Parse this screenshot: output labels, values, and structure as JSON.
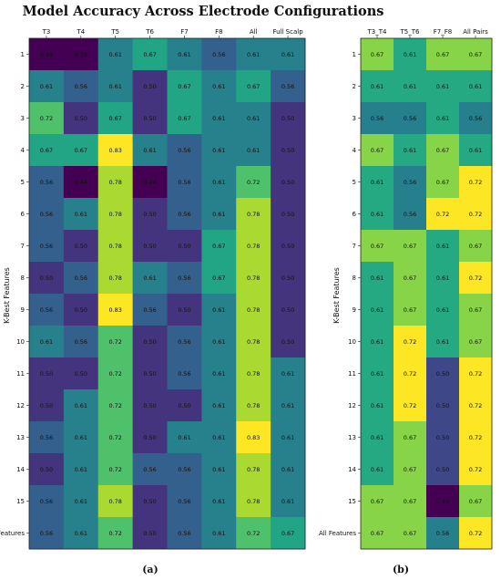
{
  "chart_data": [
    {
      "type": "heatmap",
      "title": "Model Accuracy Across Electrode Configurations",
      "panel_label": "(a)",
      "ylabel": "K-Best Features",
      "columns": [
        "T3",
        "T4",
        "T5",
        "T6",
        "F7",
        "F8",
        "All",
        "Full Scalp"
      ],
      "rows": [
        "1",
        "2",
        "3",
        "4",
        "5",
        "6",
        "7",
        "8",
        "9",
        "10",
        "11",
        "12",
        "13",
        "14",
        "15",
        "All Features"
      ],
      "colormap": "viridis",
      "color_range": [
        0.44,
        0.83
      ],
      "values": [
        [
          0.44,
          0.39,
          0.61,
          0.67,
          0.61,
          0.56,
          0.61,
          0.61
        ],
        [
          0.61,
          0.56,
          0.61,
          0.5,
          0.67,
          0.61,
          0.67,
          0.56
        ],
        [
          0.72,
          0.5,
          0.67,
          0.5,
          0.67,
          0.61,
          0.61,
          0.5
        ],
        [
          0.67,
          0.67,
          0.83,
          0.61,
          0.56,
          0.61,
          0.61,
          0.5
        ],
        [
          0.56,
          0.44,
          0.78,
          0.44,
          0.56,
          0.61,
          0.72,
          0.5
        ],
        [
          0.56,
          0.61,
          0.78,
          0.5,
          0.56,
          0.61,
          0.78,
          0.5
        ],
        [
          0.56,
          0.5,
          0.78,
          0.5,
          0.5,
          0.67,
          0.78,
          0.5
        ],
        [
          0.5,
          0.56,
          0.78,
          0.61,
          0.56,
          0.67,
          0.78,
          0.5
        ],
        [
          0.56,
          0.5,
          0.83,
          0.56,
          0.5,
          0.61,
          0.78,
          0.5
        ],
        [
          0.61,
          0.56,
          0.72,
          0.5,
          0.56,
          0.61,
          0.78,
          0.5
        ],
        [
          0.5,
          0.5,
          0.72,
          0.5,
          0.56,
          0.61,
          0.78,
          0.61
        ],
        [
          0.5,
          0.61,
          0.72,
          0.5,
          0.5,
          0.61,
          0.78,
          0.61
        ],
        [
          0.56,
          0.61,
          0.72,
          0.5,
          0.61,
          0.61,
          0.83,
          0.61
        ],
        [
          0.5,
          0.61,
          0.72,
          0.56,
          0.56,
          0.61,
          0.78,
          0.61
        ],
        [
          0.56,
          0.61,
          0.78,
          0.5,
          0.56,
          0.61,
          0.78,
          0.61
        ],
        [
          0.56,
          0.61,
          0.72,
          0.5,
          0.56,
          0.61,
          0.72,
          0.67
        ]
      ]
    },
    {
      "type": "heatmap",
      "panel_label": "(b)",
      "ylabel": "K-Best Features",
      "columns": [
        "T3_T4",
        "T5_T6",
        "F7_F8",
        "All Pairs"
      ],
      "rows": [
        "1",
        "2",
        "3",
        "4",
        "5",
        "6",
        "7",
        "8",
        "9",
        "10",
        "11",
        "12",
        "13",
        "14",
        "15",
        "All Features"
      ],
      "colormap": "viridis",
      "color_range": [
        0.44,
        0.72
      ],
      "values": [
        [
          0.67,
          0.61,
          0.67,
          0.67
        ],
        [
          0.61,
          0.61,
          0.61,
          0.61
        ],
        [
          0.56,
          0.56,
          0.61,
          0.56
        ],
        [
          0.67,
          0.61,
          0.67,
          0.61
        ],
        [
          0.61,
          0.56,
          0.67,
          0.72
        ],
        [
          0.61,
          0.56,
          0.72,
          0.72
        ],
        [
          0.67,
          0.67,
          0.61,
          0.67
        ],
        [
          0.61,
          0.67,
          0.61,
          0.72
        ],
        [
          0.61,
          0.67,
          0.61,
          0.67
        ],
        [
          0.61,
          0.72,
          0.61,
          0.67
        ],
        [
          0.61,
          0.72,
          0.5,
          0.72
        ],
        [
          0.61,
          0.72,
          0.5,
          0.72
        ],
        [
          0.61,
          0.67,
          0.5,
          0.72
        ],
        [
          0.61,
          0.67,
          0.5,
          0.72
        ],
        [
          0.67,
          0.67,
          0.44,
          0.67
        ],
        [
          0.67,
          0.67,
          0.56,
          0.72
        ]
      ]
    }
  ]
}
